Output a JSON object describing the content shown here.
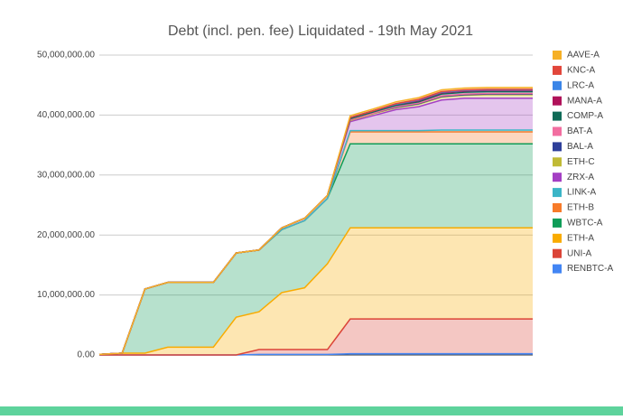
{
  "chart_data": {
    "type": "stacked-area",
    "title": "Debt (incl. pen. fee) Liquidated - 19th May 2021",
    "categories": [
      null,
      null,
      null,
      null,
      null,
      null,
      null,
      null,
      null,
      null,
      null,
      null,
      null,
      null,
      null,
      null,
      null,
      null,
      null,
      null
    ],
    "ylim": [
      0,
      50000000
    ],
    "yticks": [
      {
        "value": 0,
        "label": "0.00"
      },
      {
        "value": 10000000,
        "label": "10,000,000.00"
      },
      {
        "value": 20000000,
        "label": "20,000,000.00"
      },
      {
        "value": 30000000,
        "label": "30,000,000.00"
      },
      {
        "value": 40000000,
        "label": "40,000,000.00"
      },
      {
        "value": 50000000,
        "label": "50,000,000.00"
      }
    ],
    "grid": true,
    "legend": "right",
    "series": [
      {
        "name": "AAVE-A",
        "color": "#f6b026",
        "values": [
          0,
          0,
          0,
          0,
          0,
          0,
          0,
          0,
          0,
          0,
          0,
          300000,
          300000,
          300000,
          300000,
          300000,
          300000,
          300000,
          300000,
          300000
        ]
      },
      {
        "name": "KNC-A",
        "color": "#e2463b",
        "values": [
          0,
          0,
          0,
          0,
          0,
          0,
          0,
          0,
          0,
          0,
          0,
          0,
          0,
          100000,
          100000,
          100000,
          100000,
          100000,
          100000,
          100000
        ]
      },
      {
        "name": "LRC-A",
        "color": "#3a85e8",
        "values": [
          0,
          0,
          0,
          0,
          0,
          0,
          0,
          0,
          0,
          0,
          0,
          0,
          0,
          0,
          100000,
          100000,
          100000,
          100000,
          100000,
          100000
        ]
      },
      {
        "name": "MANA-A",
        "color": "#b0125a",
        "values": [
          0,
          0,
          0,
          0,
          0,
          0,
          0,
          0,
          0,
          0,
          0,
          200000,
          200000,
          200000,
          200000,
          200000,
          200000,
          200000,
          200000,
          200000
        ]
      },
      {
        "name": "COMP-A",
        "color": "#0f6b57",
        "values": [
          0,
          0,
          0,
          0,
          0,
          0,
          0,
          0,
          0,
          0,
          0,
          200000,
          200000,
          200000,
          200000,
          300000,
          300000,
          300000,
          300000,
          300000
        ]
      },
      {
        "name": "BAT-A",
        "color": "#f26ea0",
        "values": [
          0,
          0,
          0,
          0,
          0,
          0,
          0,
          0,
          0,
          0,
          0,
          0,
          0,
          100000,
          100000,
          100000,
          100000,
          100000,
          100000,
          100000
        ]
      },
      {
        "name": "BAL-A",
        "color": "#2e3f9a",
        "values": [
          0,
          0,
          0,
          0,
          0,
          0,
          0,
          0,
          0,
          0,
          0,
          100000,
          100000,
          100000,
          100000,
          100000,
          100000,
          100000,
          100000,
          100000
        ]
      },
      {
        "name": "ETH-C",
        "color": "#c0ba35",
        "values": [
          0,
          0,
          0,
          0,
          0,
          0,
          0,
          0,
          0,
          0,
          0,
          200000,
          300000,
          300000,
          400000,
          500000,
          500000,
          600000,
          600000,
          600000
        ]
      },
      {
        "name": "ZRX-A",
        "color": "#a43fc4",
        "values": [
          0,
          0,
          0,
          0,
          0,
          0,
          0,
          0,
          300000,
          400000,
          500000,
          1500000,
          2500000,
          3500000,
          4000000,
          5000000,
          5300000,
          5300000,
          5300000,
          5300000
        ]
      },
      {
        "name": "LINK-A",
        "color": "#3bb5c7",
        "values": [
          0,
          0,
          0,
          0,
          0,
          0,
          0,
          0,
          0,
          0,
          0,
          200000,
          200000,
          200000,
          200000,
          300000,
          300000,
          300000,
          300000,
          300000
        ]
      },
      {
        "name": "ETH-B",
        "color": "#f77b2a",
        "values": [
          0,
          0,
          0,
          0,
          0,
          0,
          0,
          0,
          0,
          0,
          0,
          2000000,
          2000000,
          2000000,
          2000000,
          2000000,
          2000000,
          2000000,
          2000000,
          2000000
        ]
      },
      {
        "name": "WBTC-A",
        "color": "#0f9d58",
        "values": [
          0,
          0,
          10700000,
          10800000,
          10800000,
          10800000,
          10700000,
          10300000,
          10500000,
          11200000,
          10900000,
          14000000,
          14000000,
          14000000,
          14000000,
          14000000,
          14000000,
          14000000,
          14000000,
          14000000
        ]
      },
      {
        "name": "ETH-A",
        "color": "#f9ab00",
        "values": [
          100000,
          300000,
          300000,
          1300000,
          1300000,
          1300000,
          6300000,
          6300000,
          9500000,
          10300000,
          14300000,
          15200000,
          15200000,
          15200000,
          15200000,
          15200000,
          15200000,
          15200000,
          15200000,
          15200000
        ]
      },
      {
        "name": "UNI-A",
        "color": "#db4437",
        "values": [
          0,
          0,
          0,
          0,
          0,
          0,
          0,
          800000,
          800000,
          800000,
          800000,
          5800000,
          5800000,
          5800000,
          5800000,
          5800000,
          5800000,
          5800000,
          5800000,
          5800000
        ]
      },
      {
        "name": "RENBTC-A",
        "color": "#4285f4",
        "values": [
          0,
          0,
          0,
          0,
          0,
          0,
          0,
          100000,
          100000,
          100000,
          100000,
          200000,
          200000,
          200000,
          200000,
          200000,
          200000,
          200000,
          200000,
          200000
        ]
      }
    ]
  }
}
